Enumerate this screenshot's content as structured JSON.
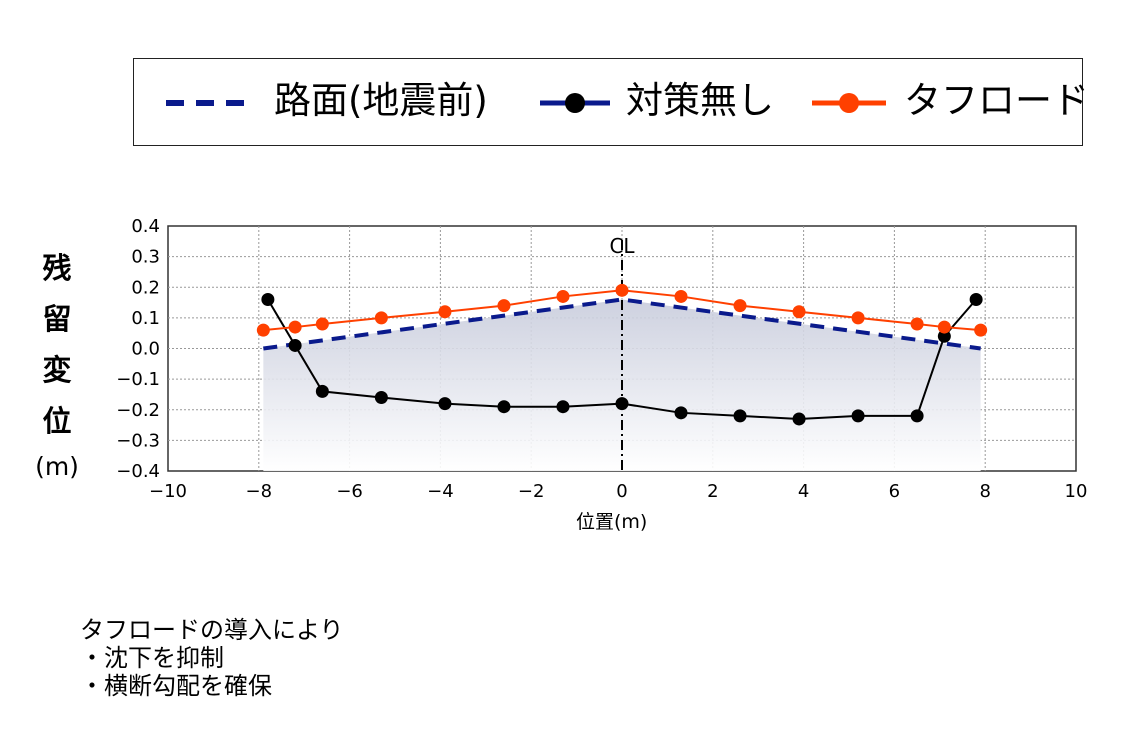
{
  "chart_data": {
    "type": "line",
    "xlabel": "位置(m)",
    "ylabel_chars": [
      "残",
      "留",
      "変",
      "位"
    ],
    "ylabel_unit": "(m)",
    "xlim": [
      -10,
      10
    ],
    "ylim": [
      -0.4,
      0.4
    ],
    "x_ticks": [
      -10,
      -8,
      -6,
      -4,
      -2,
      0,
      2,
      4,
      6,
      8,
      10
    ],
    "y_ticks": [
      0.4,
      0.3,
      0.2,
      0.1,
      0.0,
      -0.1,
      -0.2,
      -0.3,
      -0.4
    ],
    "x_tick_labels": [
      "−10",
      "−8",
      "−6",
      "−4",
      "−2",
      "0",
      "2",
      "4",
      "6",
      "8",
      "10"
    ],
    "y_tick_labels": [
      "0.4",
      "0.3",
      "0.2",
      "0.1",
      "0.0",
      "−0.1",
      "−0.2",
      "−0.3",
      "−0.4"
    ],
    "grid": true,
    "centerline_label": "CL",
    "centerline_x": 0,
    "series": [
      {
        "name": "路面(地震前)",
        "style": "dashed",
        "color": "#0a1a8c",
        "x": [
          -7.9,
          0,
          7.9
        ],
        "y": [
          0.0,
          0.16,
          0.0
        ]
      },
      {
        "name": "対策無し",
        "style": "solid-markers",
        "color": "#000000",
        "x": [
          -7.8,
          -7.2,
          -6.6,
          -5.3,
          -3.9,
          -2.6,
          -1.3,
          0.0,
          1.3,
          2.6,
          3.9,
          5.2,
          6.5,
          7.1,
          7.8
        ],
        "y": [
          0.16,
          0.01,
          -0.14,
          -0.16,
          -0.18,
          -0.19,
          -0.19,
          -0.18,
          -0.21,
          -0.22,
          -0.23,
          -0.22,
          -0.22,
          0.04,
          0.16
        ]
      },
      {
        "name": "タフロード",
        "style": "solid-markers",
        "color": "#ff4000",
        "x": [
          -7.9,
          -7.2,
          -6.6,
          -5.3,
          -3.9,
          -2.6,
          -1.3,
          0.0,
          1.3,
          2.6,
          3.9,
          5.2,
          6.5,
          7.1,
          7.9
        ],
        "y": [
          0.06,
          0.07,
          0.08,
          0.1,
          0.12,
          0.14,
          0.17,
          0.19,
          0.17,
          0.14,
          0.12,
          0.1,
          0.08,
          0.07,
          0.06
        ]
      }
    ]
  },
  "legend": {
    "items": [
      {
        "label": "路面(地震前)",
        "color": "#0a1a8c",
        "style": "dashed"
      },
      {
        "label": "対策無し",
        "color": "#000000",
        "line_color": "#0a1a8c",
        "style": "solid-markers"
      },
      {
        "label": "タフロード",
        "color": "#ff4000",
        "style": "solid-markers"
      }
    ]
  },
  "note": {
    "line1": "タフロードの導入により",
    "line2": "・沈下を抑制",
    "line3": "・横断勾配を確保"
  }
}
